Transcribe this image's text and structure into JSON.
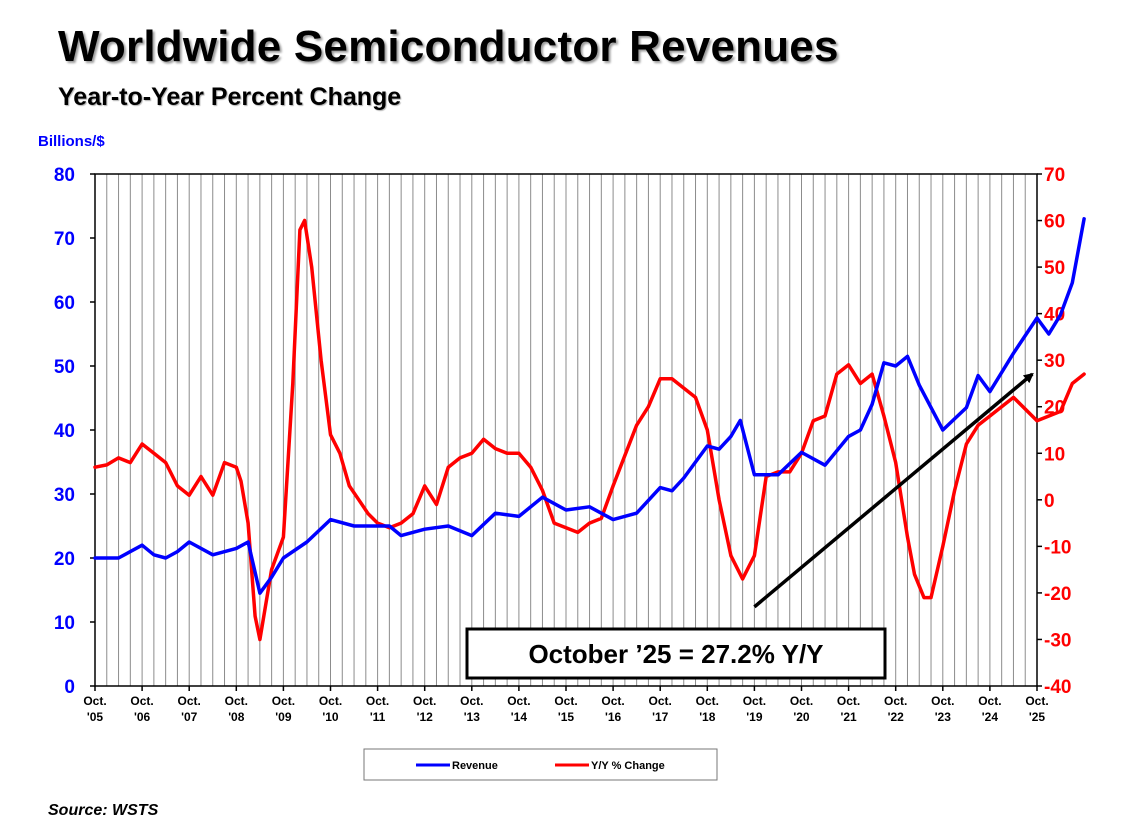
{
  "header": {
    "title": "Worldwide Semiconductor Revenues",
    "subtitle": "Year-to-Year Percent Change"
  },
  "footer": {
    "source": "Source: WSTS"
  },
  "chart_data": {
    "type": "line",
    "y_left_label": "Billions/$",
    "y_left_range": [
      0,
      80
    ],
    "y_left_ticks": [
      "0",
      "10",
      "20",
      "30",
      "40",
      "50",
      "60",
      "70",
      "80"
    ],
    "y_right_range": [
      -40,
      70
    ],
    "y_right_ticks": [
      "-40",
      "-30",
      "-20",
      "-10",
      "0",
      "10",
      "20",
      "30",
      "40",
      "50",
      "60",
      "70"
    ],
    "x_ticks": [
      {
        "top": "Oct.",
        "bottom": "'05"
      },
      {
        "top": "Oct.",
        "bottom": "'06"
      },
      {
        "top": "Oct.",
        "bottom": "'07"
      },
      {
        "top": "Oct.",
        "bottom": "'08"
      },
      {
        "top": "Oct.",
        "bottom": "'09"
      },
      {
        "top": "Oct.",
        "bottom": "'10"
      },
      {
        "top": "Oct.",
        "bottom": "'11"
      },
      {
        "top": "Oct.",
        "bottom": "'12"
      },
      {
        "top": "Oct.",
        "bottom": "'13"
      },
      {
        "top": "Oct.",
        "bottom": "'14"
      },
      {
        "top": "Oct.",
        "bottom": "'15"
      },
      {
        "top": "Oct.",
        "bottom": "'16"
      },
      {
        "top": "Oct.",
        "bottom": "'17"
      },
      {
        "top": "Oct.",
        "bottom": "'18"
      },
      {
        "top": "Oct.",
        "bottom": "'19"
      },
      {
        "top": "Oct.",
        "bottom": "'20"
      },
      {
        "top": "Oct.",
        "bottom": "'21"
      },
      {
        "top": "Oct.",
        "bottom": "'22"
      },
      {
        "top": "Oct.",
        "bottom": "'23"
      },
      {
        "top": "Oct.",
        "bottom": "'24"
      },
      {
        "top": "Oct.",
        "bottom": "'25"
      }
    ],
    "grid": "vertical",
    "legend_position": "bottom-center",
    "annotation": "October ’25 = 27.2% Y/Y",
    "arrow": {
      "from": [
        14.0,
        -23
      ],
      "to": [
        19.9,
        27
      ]
    },
    "series": [
      {
        "name": "Revenue",
        "axis": "left",
        "color": "#0000ff",
        "x": [
          0,
          0.5,
          1,
          1.25,
          1.5,
          1.75,
          2,
          2.5,
          3,
          3.25,
          3.5,
          3.75,
          4,
          4.5,
          5,
          5.5,
          6,
          6.25,
          6.5,
          7,
          7.5,
          8,
          8.5,
          9,
          9.5,
          10,
          10.5,
          11,
          11.5,
          12,
          12.25,
          12.5,
          13,
          13.25,
          13.5,
          13.7,
          14,
          14.5,
          15,
          15.5,
          16,
          16.25,
          16.5,
          16.75,
          17,
          17.25,
          17.5,
          18,
          18.5,
          18.75,
          19,
          19.5,
          20,
          20.25,
          20.5,
          20.75,
          21
        ],
        "y": [
          20,
          20,
          22,
          20.5,
          20,
          21,
          22.5,
          20.5,
          21.5,
          22.5,
          14.5,
          17,
          20,
          22.5,
          26,
          25,
          25,
          25,
          23.5,
          24.5,
          25,
          23.5,
          27,
          26.5,
          29.5,
          27.5,
          28,
          26,
          27,
          31,
          30.5,
          32.5,
          37.5,
          37,
          39,
          41.5,
          33,
          33,
          36.5,
          34.5,
          39,
          40,
          44,
          50.5,
          50,
          51.5,
          47,
          40,
          43.5,
          48.5,
          46,
          52,
          57.5,
          55,
          58,
          63,
          73
        ]
      },
      {
        "name": "Y/Y % Change",
        "axis": "right",
        "color": "#ff0000",
        "x": [
          0,
          0.25,
          0.5,
          0.75,
          1,
          1.25,
          1.5,
          1.75,
          2,
          2.25,
          2.5,
          2.75,
          3,
          3.1,
          3.25,
          3.4,
          3.5,
          3.75,
          4,
          4.2,
          4.35,
          4.45,
          4.6,
          4.8,
          5,
          5.2,
          5.4,
          5.6,
          5.8,
          6,
          6.25,
          6.5,
          6.75,
          7,
          7.25,
          7.5,
          7.75,
          8,
          8.25,
          8.5,
          8.75,
          9,
          9.25,
          9.5,
          9.75,
          10,
          10.25,
          10.5,
          10.75,
          11,
          11.5,
          11.75,
          12,
          12.25,
          12.5,
          12.75,
          13,
          13.25,
          13.5,
          13.75,
          14,
          14.25,
          14.5,
          14.75,
          15,
          15.25,
          15.5,
          15.75,
          16,
          16.25,
          16.5,
          16.75,
          17,
          17.25,
          17.4,
          17.6,
          17.75,
          18,
          18.25,
          18.5,
          18.75,
          19,
          19.5,
          20,
          20.5,
          20.75,
          21
        ],
        "y": [
          7,
          7.5,
          9,
          8,
          12,
          10,
          8,
          3,
          1,
          5,
          1,
          8,
          7,
          4,
          -5,
          -25,
          -30,
          -15,
          -8,
          25,
          58,
          60,
          50,
          30,
          14,
          10,
          3,
          0,
          -3,
          -5,
          -6,
          -5,
          -3,
          3,
          -1,
          7,
          9,
          10,
          13,
          11,
          10,
          10,
          7,
          2,
          -5,
          -6,
          -7,
          -5,
          -4,
          3,
          16,
          20,
          26,
          26,
          24,
          22,
          15,
          0,
          -12,
          -17,
          -12,
          5,
          6,
          6,
          10,
          17,
          18,
          27,
          29,
          25,
          27,
          18,
          8,
          -8,
          -16,
          -21,
          -21,
          -10,
          2,
          12,
          16,
          18,
          22,
          17,
          19,
          25,
          27
        ]
      }
    ]
  }
}
